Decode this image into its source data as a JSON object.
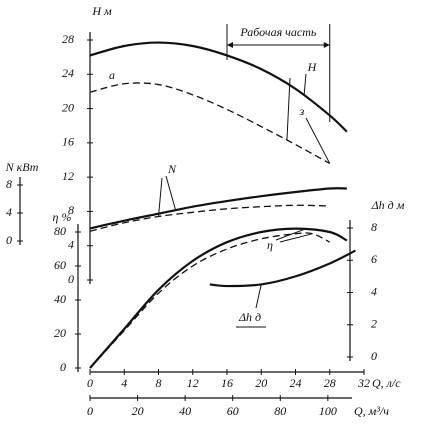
{
  "chart_data": {
    "type": "line",
    "x": {
      "label": "Q, л/с",
      "lim": [
        0,
        32
      ],
      "ticks": [
        0,
        4,
        8,
        12,
        16,
        20,
        24,
        28,
        32
      ]
    },
    "x2": {
      "label": "Q, м³/ч",
      "lim": [
        0,
        115.2
      ],
      "ticks": [
        0,
        20,
        40,
        60,
        80,
        100
      ]
    },
    "axes": {
      "H": {
        "label": "Н м",
        "lim": [
          0,
          28
        ],
        "ticks": [
          0,
          4,
          8,
          12,
          16,
          20,
          24,
          28
        ]
      },
      "N": {
        "label": "N кВт",
        "lim": [
          0,
          8
        ],
        "ticks": [
          0,
          4,
          8
        ]
      },
      "eta": {
        "label": "η %",
        "lim": [
          0,
          80
        ],
        "ticks": [
          0,
          20,
          40,
          60,
          80
        ]
      },
      "dh": {
        "label": "Δh д м",
        "lim": [
          0,
          8
        ],
        "ticks": [
          0,
          2,
          4,
          6,
          8
        ]
      }
    },
    "series": [
      {
        "name": "Н",
        "axis": "H",
        "color": "#111111",
        "dash": false,
        "x": [
          0,
          4,
          8,
          12,
          16,
          20,
          24,
          28,
          30
        ],
        "values": [
          26.2,
          27.3,
          27.7,
          27.3,
          26.2,
          24.6,
          22.3,
          19.2,
          17.3
        ]
      },
      {
        "name": "а",
        "axis": "H",
        "color": "#111111",
        "dash": true,
        "x": [
          0,
          4,
          8,
          12,
          16,
          20,
          24,
          28
        ],
        "values": [
          21.9,
          22.9,
          22.8,
          21.6,
          19.9,
          17.9,
          15.8,
          13.6
        ]
      },
      {
        "name": "N",
        "axis": "N",
        "color": "#111111",
        "dash": false,
        "x": [
          0,
          4,
          8,
          12,
          16,
          20,
          24,
          28,
          30
        ],
        "values": [
          1.8,
          2.9,
          3.9,
          4.9,
          5.7,
          6.4,
          7.0,
          7.5,
          7.5
        ]
      },
      {
        "axis": "N",
        "color": "#111111",
        "dash": true,
        "x": [
          0,
          4,
          8,
          12,
          16,
          20,
          24,
          28
        ],
        "values": [
          1.4,
          2.6,
          3.5,
          4.1,
          4.6,
          4.9,
          5.1,
          5.0
        ]
      },
      {
        "name": "η",
        "axis": "eta",
        "color": "#111111",
        "dash": false,
        "x": [
          0,
          4,
          8,
          12,
          16,
          20,
          24,
          28,
          30
        ],
        "values": [
          0,
          23,
          46,
          63,
          74,
          80,
          82,
          80,
          75
        ]
      },
      {
        "axis": "eta",
        "color": "#111111",
        "dash": true,
        "x": [
          0,
          4,
          8,
          12,
          16,
          20,
          24,
          26,
          28
        ],
        "values": [
          0,
          22,
          44,
          60,
          70,
          76,
          79,
          79,
          74
        ]
      },
      {
        "name": "Δh д",
        "axis": "dh",
        "color": "#111111",
        "dash": false,
        "x": [
          14,
          16,
          20,
          24,
          28,
          31
        ],
        "values": [
          4.5,
          4.4,
          4.5,
          5.0,
          5.8,
          6.6
        ]
      }
    ],
    "annotations": [
      {
        "text": "Рабочая часть",
        "range": [
          16,
          28
        ]
      },
      {
        "text": "з"
      }
    ]
  }
}
